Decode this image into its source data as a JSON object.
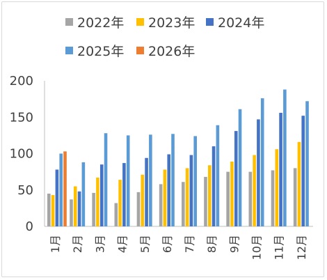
{
  "chart_data": {
    "type": "bar",
    "title": "",
    "xlabel": "",
    "ylabel": "",
    "ylim": [
      0,
      200
    ],
    "yticks": [
      0,
      50,
      100,
      150,
      200
    ],
    "grid": false,
    "legend_position": "top",
    "categories": [
      "1月",
      "2月",
      "3月",
      "4月",
      "5月",
      "6月",
      "7月",
      "8月",
      "9月",
      "10月",
      "11月",
      "12月"
    ],
    "series": [
      {
        "name": "2022年",
        "color": "#a5a5a5",
        "values": [
          45,
          37,
          46,
          32,
          47,
          58,
          61,
          68,
          75,
          75,
          77,
          80
        ]
      },
      {
        "name": "2023年",
        "color": "#ffc000",
        "values": [
          43,
          55,
          67,
          64,
          71,
          78,
          80,
          84,
          89,
          98,
          106,
          116
        ]
      },
      {
        "name": "2024年",
        "color": "#4472c4",
        "values": [
          78,
          48,
          85,
          87,
          94,
          99,
          98,
          110,
          131,
          147,
          156,
          152
        ]
      },
      {
        "name": "2025年",
        "color": "#5b9bd5",
        "values": [
          100,
          88,
          128,
          125,
          126,
          127,
          124,
          139,
          161,
          176,
          188,
          172
        ]
      },
      {
        "name": "2026年",
        "color": "#ed7d31",
        "values": [
          103,
          null,
          null,
          null,
          null,
          null,
          null,
          null,
          null,
          null,
          null,
          null
        ]
      }
    ]
  }
}
